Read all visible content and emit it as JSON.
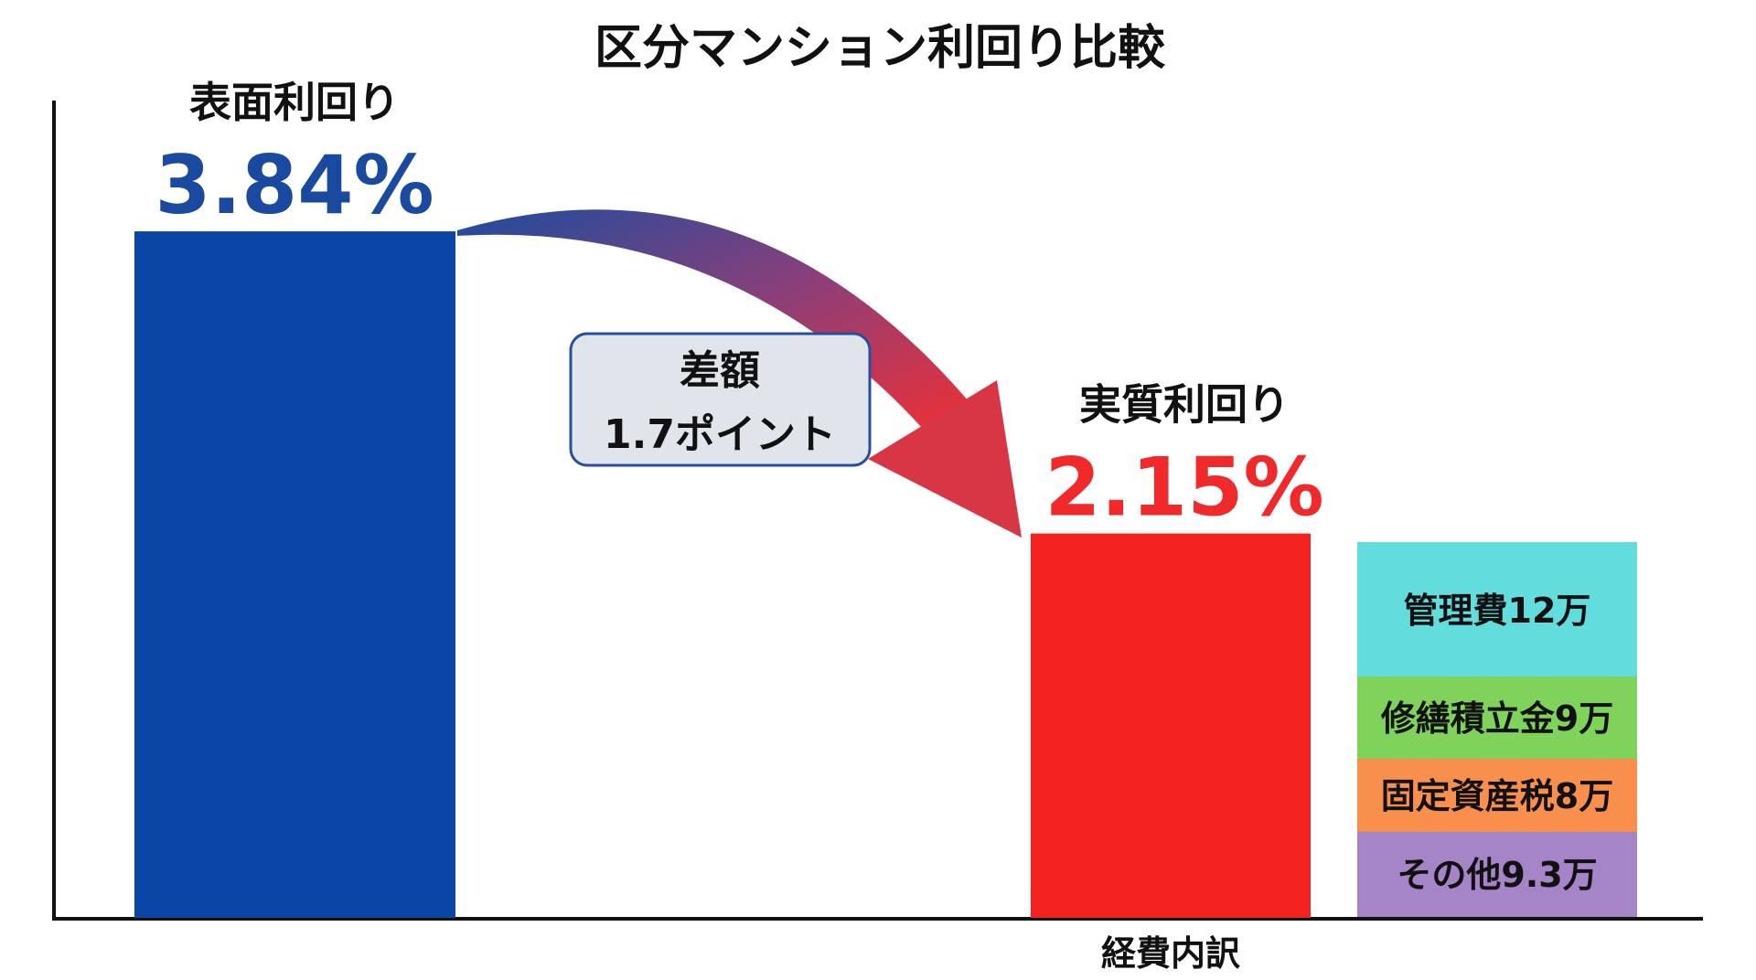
{
  "chart_data": {
    "type": "bar",
    "title": "区分マンション利回り比較",
    "categories": [
      "表面利回り",
      "実質利回り"
    ],
    "values": [
      3.84,
      2.15
    ],
    "value_labels": [
      "3.84%",
      "2.15%"
    ],
    "ylim": [
      0,
      4.5
    ],
    "grid": false,
    "colors": [
      "#0b45a5",
      "#f52222"
    ],
    "difference_annotation": {
      "line1": "差額",
      "line2": "1.7ポイント"
    },
    "expense_breakdown": {
      "label": "経費内訳",
      "items": [
        {
          "label": "管理費12万",
          "value": 12,
          "color": "#62dcdc"
        },
        {
          "label": "修繕積立金9万",
          "value": 9,
          "color": "#7fd35a"
        },
        {
          "label": "固定資産税8万",
          "value": 8,
          "color": "#f98f4d"
        },
        {
          "label": "その他9.3万",
          "value": 9.3,
          "color": "#a585c8"
        }
      ]
    }
  }
}
